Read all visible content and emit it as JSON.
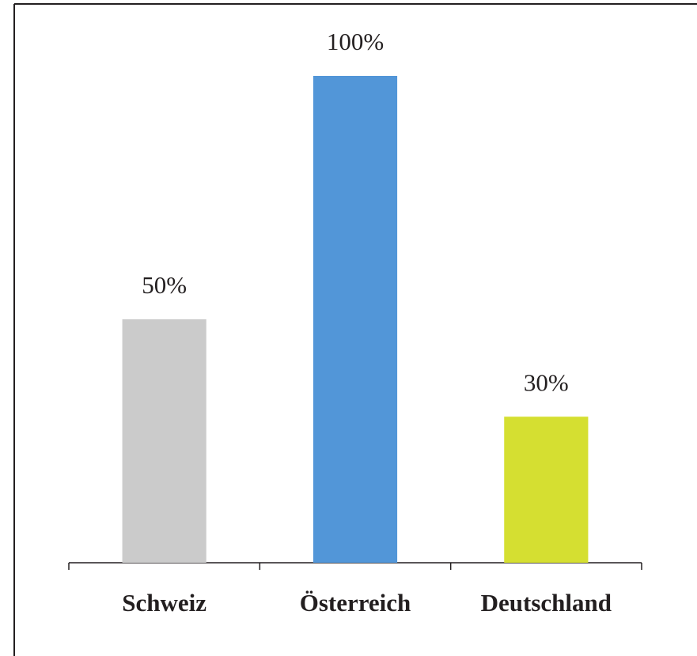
{
  "chart_data": {
    "type": "bar",
    "categories": [
      "Schweiz",
      "Österreich",
      "Deutschland"
    ],
    "values": [
      50,
      100,
      30
    ],
    "value_labels": [
      "50%",
      "100%",
      "30%"
    ],
    "colors": [
      "#cbcbcb",
      "#5296d8",
      "#d5df31"
    ]
  }
}
